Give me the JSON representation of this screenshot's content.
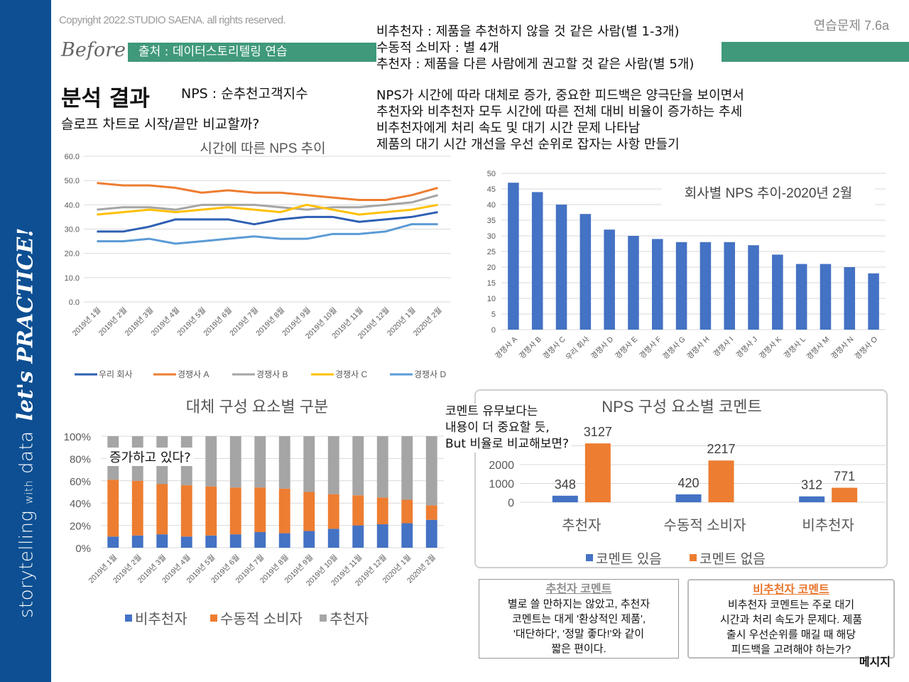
{
  "sidebar": {
    "brand_main": "storytelling",
    "brand_with": "with",
    "brand_data": "data",
    "tagline": "let's PRACTICE!"
  },
  "header": {
    "copyright": "Copyright 2022.STUDIO SAENA. all rights reserved.",
    "exercise_id": "연습문제 7.6a",
    "before_label": "Before",
    "source": "출처 : 데이터스토리텔링 연습",
    "title": "분석 결과",
    "nps_definition": "NPS : 순추천고객지수",
    "question": "슬로프 차트로 시작/끝만 비교할까?"
  },
  "definitions": [
    "비추천자 : 제품을 추천하지 않을 것 같은 사람(별 1-3개)",
    "수동적 소비자 : 별 4개",
    "추천자 : 제품을 다른 사람에게 권고할 것 같은 사람(별 5개)"
  ],
  "insights": [
    "NPS가 시간에 따라 대체로 증가, 중요한 피드백은 양극단을 보이면서",
    "추천자와 비추천자 모두 시간에 따른 전체 대비 비율이 증가하는 추세",
    "비추천자에게 처리 속도 및 대기 시간 문제 나타남",
    "제품의 대기 시간 개선을 우선 순위로 잡자는 사항 만들기"
  ],
  "annotations": {
    "increase": "증가하고 있다?",
    "comment_note": [
      "코멘트 유무보다는",
      "내용이 더 중요할 듯,",
      "But 비율로 비교해보면?"
    ],
    "message": "메시지"
  },
  "comment_boxes": {
    "recommender": {
      "title": "추천자 코멘트",
      "lines": [
        "별로 쓸 만하지는 않았고, 추천자",
        "코멘트는 대게 '환상적인 제품',",
        "'대단하다', '정말 좋다!'와 같이",
        "짧은 편이다."
      ]
    },
    "detractor": {
      "title": "비추천자 코멘트",
      "lines": [
        "비추천자 코멘트는 주로 대기",
        "시간과 처리 속도가 문제다. 제품",
        "출시 우선순위를 매길 때 해당",
        "피드백을 고려해야 하는가?"
      ]
    }
  },
  "colors": {
    "sidebar": "#0d4f92",
    "accent_green": "#3f997a",
    "our_company": "#2e5fb4",
    "comp_a": "#ed7d31",
    "comp_b": "#a5a5a5",
    "comp_c": "#ffc000",
    "comp_d": "#5b9bd5",
    "bar_blue": "#4472c4",
    "bar_orange": "#ed7d31",
    "bar_gray": "#a5a5a5"
  },
  "chart_data": [
    {
      "id": "nps-trend",
      "type": "line",
      "title": "시간에 따른 NPS 추이",
      "categories": [
        "2019년 1월",
        "2019년 2월",
        "2019년 3월",
        "2019년 4월",
        "2019년 5월",
        "2019년 6월",
        "2019년 7월",
        "2019년 8월",
        "2019년 9월",
        "2019년 10월",
        "2019년 11월",
        "2019년 12월",
        "2020년 1월",
        "2020년 2월"
      ],
      "ylim": [
        0,
        60
      ],
      "yticks": [
        "0.0",
        "10.0",
        "20.0",
        "30.0",
        "40.0",
        "50.0",
        "60.0"
      ],
      "grid": true,
      "legend": "bottom",
      "series": [
        {
          "name": "우리 회사",
          "color": "#2e5fb4",
          "values": [
            29,
            29,
            31,
            34,
            34,
            34,
            32,
            34,
            35,
            35,
            33,
            34,
            35,
            37
          ]
        },
        {
          "name": "경쟁사 A",
          "color": "#ed7d31",
          "values": [
            49,
            48,
            48,
            47,
            45,
            46,
            45,
            45,
            44,
            43,
            42,
            42,
            44,
            47
          ]
        },
        {
          "name": "경쟁사 B",
          "color": "#a5a5a5",
          "values": [
            38,
            39,
            39,
            38,
            40,
            40,
            40,
            39,
            38,
            39,
            39,
            40,
            41,
            44
          ]
        },
        {
          "name": "경쟁사 C",
          "color": "#ffc000",
          "values": [
            36,
            37,
            38,
            37,
            38,
            39,
            38,
            37,
            40,
            38,
            36,
            37,
            38,
            40
          ]
        },
        {
          "name": "경쟁사 D",
          "color": "#5b9bd5",
          "values": [
            25,
            25,
            26,
            24,
            25,
            26,
            27,
            26,
            26,
            28,
            28,
            29,
            32,
            32
          ]
        }
      ]
    },
    {
      "id": "nps-by-company",
      "type": "bar",
      "title": "회사별 NPS 추이-2020년 2월",
      "categories": [
        "경쟁사 A",
        "경쟁사 B",
        "경쟁사 C",
        "우리 회사",
        "경쟁사 D",
        "경쟁사 E",
        "경쟁사 F",
        "경쟁사 G",
        "경쟁사 H",
        "경쟁사 I",
        "경쟁사 J",
        "경쟁사 K",
        "경쟁사 L",
        "경쟁사 M",
        "경쟁사 N",
        "경쟁사 O"
      ],
      "values": [
        47,
        44,
        40,
        37,
        32,
        30,
        29,
        28,
        28,
        28,
        27,
        24,
        21,
        21,
        20,
        18
      ],
      "ylim": [
        0,
        50
      ],
      "yticks": [
        "0",
        "5",
        "10",
        "15",
        "20",
        "25",
        "30",
        "35",
        "40",
        "45",
        "50"
      ],
      "grid": true
    },
    {
      "id": "composition",
      "type": "bar",
      "stacked": "percent",
      "title": "대체 구성 요소별 구분",
      "categories": [
        "2019년 1월",
        "2019년 2월",
        "2019년 3월",
        "2019년 4월",
        "2019년 5월",
        "2019년 6월",
        "2019년 7월",
        "2019년 8월",
        "2019년 9월",
        "2019년 10월",
        "2019년 11월",
        "2019년 12월",
        "2020년 1월",
        "2020년 2월"
      ],
      "ylim": [
        0,
        100
      ],
      "yticks": [
        "0%",
        "20%",
        "40%",
        "60%",
        "80%",
        "100%"
      ],
      "legend": "bottom",
      "series": [
        {
          "name": "비추천자",
          "color": "#4472c4",
          "values": [
            10,
            11,
            12,
            10,
            11,
            12,
            14,
            13,
            15,
            17,
            20,
            21,
            22,
            25
          ]
        },
        {
          "name": "수동적 소비자",
          "color": "#ed7d31",
          "values": [
            51,
            49,
            45,
            46,
            44,
            42,
            40,
            40,
            35,
            31,
            27,
            24,
            21,
            13
          ]
        },
        {
          "name": "추천자",
          "color": "#a5a5a5",
          "values": [
            39,
            40,
            43,
            44,
            45,
            46,
            46,
            47,
            50,
            52,
            53,
            55,
            57,
            62
          ]
        }
      ]
    },
    {
      "id": "comments",
      "type": "bar",
      "title": "NPS 구성 요소별 코멘트",
      "categories": [
        "추천자",
        "수동적 소비자",
        "비추천자"
      ],
      "yticks": [
        "0",
        "1000",
        "2000"
      ],
      "ylim": [
        0,
        3500
      ],
      "legend": "bottom",
      "series": [
        {
          "name": "코멘트 있음",
          "color": "#4472c4",
          "values": [
            348,
            420,
            312
          ],
          "labels": [
            "348",
            "420",
            "312"
          ]
        },
        {
          "name": "코멘트 없음",
          "color": "#ed7d31",
          "values": [
            3127,
            2217,
            771
          ],
          "labels": [
            "3127",
            "2217",
            "771"
          ]
        }
      ]
    }
  ]
}
